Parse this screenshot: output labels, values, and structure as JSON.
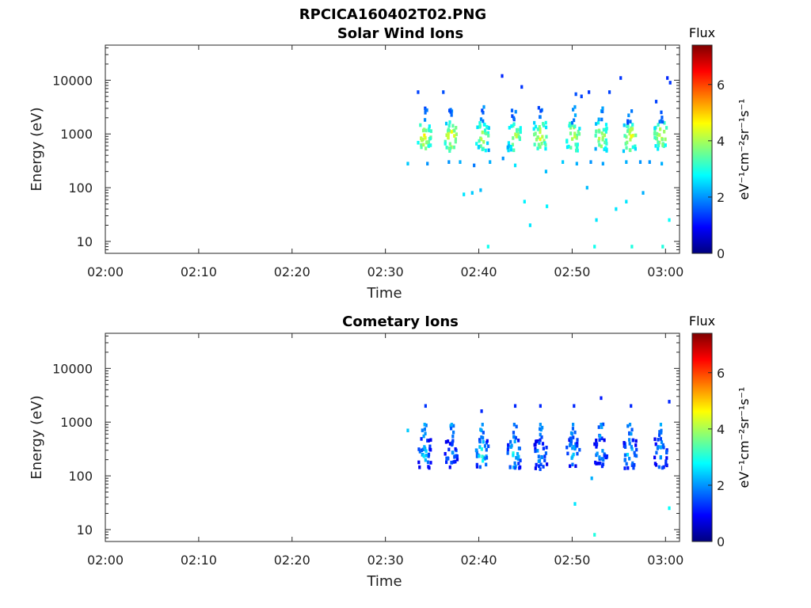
{
  "figure": {
    "title": "RPCICA160402T02.PNG"
  },
  "colors": {
    "colormap": [
      "#00007f",
      "#0000ff",
      "#007fff",
      "#00ffff",
      "#7fff7f",
      "#ffff00",
      "#ff7f00",
      "#ff0000",
      "#7f0000"
    ]
  },
  "chart_data": [
    {
      "type": "heatmap",
      "title": "Solar Wind Ions",
      "xlabel": "Time",
      "ylabel": "Energy (eV)",
      "x_ticks": [
        "02:00",
        "02:10",
        "02:20",
        "02:30",
        "02:40",
        "02:50",
        "03:00"
      ],
      "x_range_minutes": [
        0,
        61.5
      ],
      "y_ticks": [
        "10",
        "100",
        "1000",
        "10000"
      ],
      "y_tick_values": [
        10,
        100,
        1000,
        10000
      ],
      "y_scale": "log",
      "y_range": [
        6,
        45000
      ],
      "colorbar": {
        "label": "Flux",
        "units": "eV⁻¹cm⁻²sr⁻¹s⁻¹",
        "ticks": [
          "0",
          "2",
          "4",
          "6"
        ],
        "range": [
          0,
          7.4
        ]
      },
      "bursts_minutes": [
        34.2,
        37.1,
        40.4,
        43.8,
        46.6,
        50.1,
        53.1,
        56.2,
        59.5
      ],
      "bursts": [
        {
          "t": 34.2,
          "e": 900,
          "flux": 4.6
        },
        {
          "t": 37.1,
          "e": 900,
          "flux": 4.6
        },
        {
          "t": 40.4,
          "e": 900,
          "flux": 4.2
        },
        {
          "t": 43.8,
          "e": 900,
          "flux": 4.3
        },
        {
          "t": 46.6,
          "e": 900,
          "flux": 4.5
        },
        {
          "t": 50.1,
          "e": 900,
          "flux": 4.5
        },
        {
          "t": 53.1,
          "e": 900,
          "flux": 4.3
        },
        {
          "t": 56.2,
          "e": 900,
          "flux": 4.6
        },
        {
          "t": 59.5,
          "e": 900,
          "flux": 4.5
        }
      ],
      "scatter": [
        {
          "t": 33.5,
          "e": 6000,
          "flux": 1.4
        },
        {
          "t": 36.2,
          "e": 6000,
          "flux": 1.5
        },
        {
          "t": 42.5,
          "e": 12000,
          "flux": 1.2
        },
        {
          "t": 44.6,
          "e": 7500,
          "flux": 1.3
        },
        {
          "t": 50.4,
          "e": 5500,
          "flux": 1.5
        },
        {
          "t": 51.0,
          "e": 5000,
          "flux": 1.4
        },
        {
          "t": 51.8,
          "e": 6000,
          "flux": 1.3
        },
        {
          "t": 54.0,
          "e": 6000,
          "flux": 1.4
        },
        {
          "t": 55.2,
          "e": 11000,
          "flux": 1.3
        },
        {
          "t": 59.0,
          "e": 4000,
          "flux": 1.4
        },
        {
          "t": 60.2,
          "e": 11000,
          "flux": 1.2
        },
        {
          "t": 60.5,
          "e": 9000,
          "flux": 1.3
        },
        {
          "t": 32.4,
          "e": 280,
          "flux": 2.4
        },
        {
          "t": 34.5,
          "e": 280,
          "flux": 2.0
        },
        {
          "t": 36.8,
          "e": 300,
          "flux": 2.0
        },
        {
          "t": 38.0,
          "e": 300,
          "flux": 2.2
        },
        {
          "t": 39.5,
          "e": 260,
          "flux": 1.8
        },
        {
          "t": 41.2,
          "e": 300,
          "flux": 2.2
        },
        {
          "t": 42.6,
          "e": 350,
          "flux": 2.0
        },
        {
          "t": 43.9,
          "e": 260,
          "flux": 2.6
        },
        {
          "t": 47.2,
          "e": 200,
          "flux": 2.3
        },
        {
          "t": 49.0,
          "e": 300,
          "flux": 2.4
        },
        {
          "t": 50.5,
          "e": 280,
          "flux": 2.2
        },
        {
          "t": 52.0,
          "e": 300,
          "flux": 2.0
        },
        {
          "t": 53.3,
          "e": 280,
          "flux": 2.1
        },
        {
          "t": 55.8,
          "e": 300,
          "flux": 2.2
        },
        {
          "t": 57.3,
          "e": 300,
          "flux": 2.0
        },
        {
          "t": 58.3,
          "e": 300,
          "flux": 2.0
        },
        {
          "t": 59.6,
          "e": 280,
          "flux": 2.2
        },
        {
          "t": 38.4,
          "e": 75,
          "flux": 2.6
        },
        {
          "t": 39.3,
          "e": 80,
          "flux": 2.4
        },
        {
          "t": 40.2,
          "e": 90,
          "flux": 2.3
        },
        {
          "t": 44.9,
          "e": 55,
          "flux": 2.7
        },
        {
          "t": 45.5,
          "e": 20,
          "flux": 2.6
        },
        {
          "t": 47.3,
          "e": 45,
          "flux": 2.7
        },
        {
          "t": 51.6,
          "e": 100,
          "flux": 2.3
        },
        {
          "t": 52.6,
          "e": 25,
          "flux": 2.6
        },
        {
          "t": 54.7,
          "e": 40,
          "flux": 2.6
        },
        {
          "t": 55.8,
          "e": 55,
          "flux": 2.6
        },
        {
          "t": 57.6,
          "e": 80,
          "flux": 2.2
        },
        {
          "t": 60.4,
          "e": 25,
          "flux": 2.8
        },
        {
          "t": 41.0,
          "e": 8,
          "flux": 2.9
        },
        {
          "t": 52.4,
          "e": 8,
          "flux": 2.9
        },
        {
          "t": 56.4,
          "e": 8,
          "flux": 3.0
        },
        {
          "t": 59.7,
          "e": 8,
          "flux": 3.0
        }
      ]
    },
    {
      "type": "heatmap",
      "title": "Cometary Ions",
      "xlabel": "Time",
      "ylabel": "Energy (eV)",
      "x_ticks": [
        "02:00",
        "02:10",
        "02:20",
        "02:30",
        "02:40",
        "02:50",
        "03:00"
      ],
      "x_range_minutes": [
        0,
        61.5
      ],
      "y_ticks": [
        "10",
        "100",
        "1000",
        "10000"
      ],
      "y_tick_values": [
        10,
        100,
        1000,
        10000
      ],
      "y_scale": "log",
      "y_range": [
        6,
        45000
      ],
      "colorbar": {
        "label": "Flux",
        "units": "eV⁻¹cm⁻²sr⁻¹s⁻¹",
        "ticks": [
          "0",
          "2",
          "4",
          "6"
        ],
        "range": [
          0,
          7.4
        ]
      },
      "bursts_minutes": [
        34.2,
        37.1,
        40.4,
        43.8,
        46.6,
        50.1,
        53.1,
        56.2,
        59.5
      ],
      "bursts": [
        {
          "t": 34.2,
          "e": 260,
          "flux": 2.6
        },
        {
          "t": 37.1,
          "e": 250,
          "flux": 2.4
        },
        {
          "t": 40.4,
          "e": 260,
          "flux": 3.0
        },
        {
          "t": 43.8,
          "e": 260,
          "flux": 3.0
        },
        {
          "t": 46.6,
          "e": 250,
          "flux": 2.4
        },
        {
          "t": 50.1,
          "e": 280,
          "flux": 2.6
        },
        {
          "t": 53.1,
          "e": 280,
          "flux": 2.5
        },
        {
          "t": 56.2,
          "e": 260,
          "flux": 2.8
        },
        {
          "t": 59.5,
          "e": 260,
          "flux": 2.6
        }
      ],
      "scatter": [
        {
          "t": 34.2,
          "e": 900,
          "flux": 2.2
        },
        {
          "t": 37.1,
          "e": 900,
          "flux": 2.2
        },
        {
          "t": 40.4,
          "e": 900,
          "flux": 2.0
        },
        {
          "t": 43.8,
          "e": 900,
          "flux": 1.8
        },
        {
          "t": 46.6,
          "e": 900,
          "flux": 2.0
        },
        {
          "t": 50.1,
          "e": 900,
          "flux": 2.0
        },
        {
          "t": 53.1,
          "e": 900,
          "flux": 2.0
        },
        {
          "t": 56.2,
          "e": 900,
          "flux": 2.0
        },
        {
          "t": 59.5,
          "e": 900,
          "flux": 2.2
        },
        {
          "t": 34.3,
          "e": 2000,
          "flux": 1.3
        },
        {
          "t": 40.3,
          "e": 1600,
          "flux": 1.2
        },
        {
          "t": 43.9,
          "e": 2000,
          "flux": 1.2
        },
        {
          "t": 46.6,
          "e": 2000,
          "flux": 1.2
        },
        {
          "t": 50.2,
          "e": 2000,
          "flux": 1.2
        },
        {
          "t": 53.1,
          "e": 2800,
          "flux": 1.1
        },
        {
          "t": 56.3,
          "e": 2000,
          "flux": 1.2
        },
        {
          "t": 60.4,
          "e": 2400,
          "flux": 1.2
        },
        {
          "t": 32.4,
          "e": 700,
          "flux": 2.4
        },
        {
          "t": 52.1,
          "e": 90,
          "flux": 2.2
        },
        {
          "t": 50.3,
          "e": 30,
          "flux": 2.6
        },
        {
          "t": 60.4,
          "e": 25,
          "flux": 2.8
        },
        {
          "t": 52.4,
          "e": 8,
          "flux": 3.0
        }
      ]
    }
  ]
}
